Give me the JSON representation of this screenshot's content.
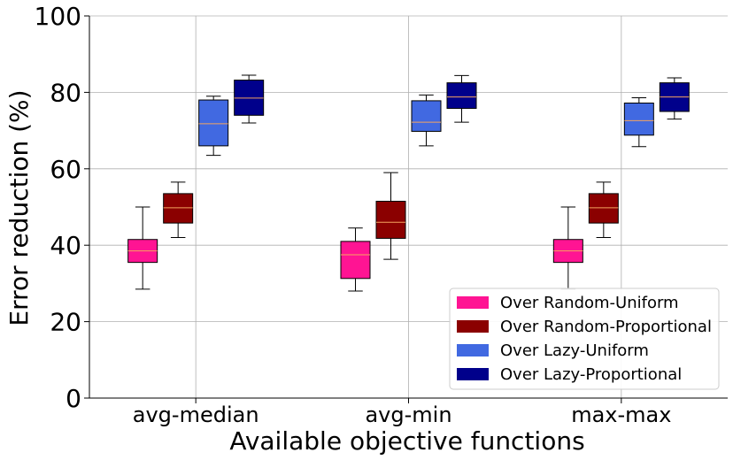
{
  "chart_data": {
    "type": "box",
    "title": "",
    "xlabel": "Available objective functions",
    "ylabel": "Error reduction (%)",
    "ylim": [
      0,
      100
    ],
    "yticks": [
      0,
      20,
      40,
      60,
      80,
      100
    ],
    "grid": true,
    "legend_position": "bottom-right",
    "categories": [
      "avg-median",
      "avg-min",
      "max-max"
    ],
    "series": [
      {
        "name": "Over Random-Uniform",
        "color": "#ff1493",
        "boxes": [
          {
            "whisker_low": 28.5,
            "q1": 35.5,
            "median": 38.5,
            "q3": 41.5,
            "whisker_high": 50
          },
          {
            "whisker_low": 28.0,
            "q1": 31.3,
            "median": 37.5,
            "q3": 41.0,
            "whisker_high": 44.5
          },
          {
            "whisker_low": 28.5,
            "q1": 35.5,
            "median": 38.5,
            "q3": 41.5,
            "whisker_high": 50
          }
        ]
      },
      {
        "name": "Over Random-Proportional",
        "color": "#8b0000",
        "boxes": [
          {
            "whisker_low": 42.0,
            "q1": 45.8,
            "median": 49.8,
            "q3": 53.5,
            "whisker_high": 56.5
          },
          {
            "whisker_low": 36.3,
            "q1": 41.8,
            "median": 46.0,
            "q3": 51.5,
            "whisker_high": 59.0
          },
          {
            "whisker_low": 42.0,
            "q1": 45.8,
            "median": 49.8,
            "q3": 53.5,
            "whisker_high": 56.5
          }
        ]
      },
      {
        "name": "Over Lazy-Uniform",
        "color": "#4169e1",
        "boxes": [
          {
            "whisker_low": 63.5,
            "q1": 66.0,
            "median": 71.8,
            "q3": 78.0,
            "whisker_high": 79.0
          },
          {
            "whisker_low": 66.0,
            "q1": 69.8,
            "median": 72.2,
            "q3": 77.8,
            "whisker_high": 79.3
          },
          {
            "whisker_low": 65.8,
            "q1": 68.8,
            "median": 72.6,
            "q3": 77.2,
            "whisker_high": 78.6
          }
        ]
      },
      {
        "name": "Over Lazy-Proportional",
        "color": "#00008b",
        "boxes": [
          {
            "whisker_low": 72.0,
            "q1": 74.0,
            "median": 78.5,
            "q3": 83.2,
            "whisker_high": 84.5
          },
          {
            "whisker_low": 72.2,
            "q1": 75.8,
            "median": 78.8,
            "q3": 82.5,
            "whisker_high": 84.4
          },
          {
            "whisker_low": 73.0,
            "q1": 75.0,
            "median": 78.8,
            "q3": 82.5,
            "whisker_high": 83.8
          }
        ]
      }
    ],
    "median_color": "#f4a460"
  }
}
